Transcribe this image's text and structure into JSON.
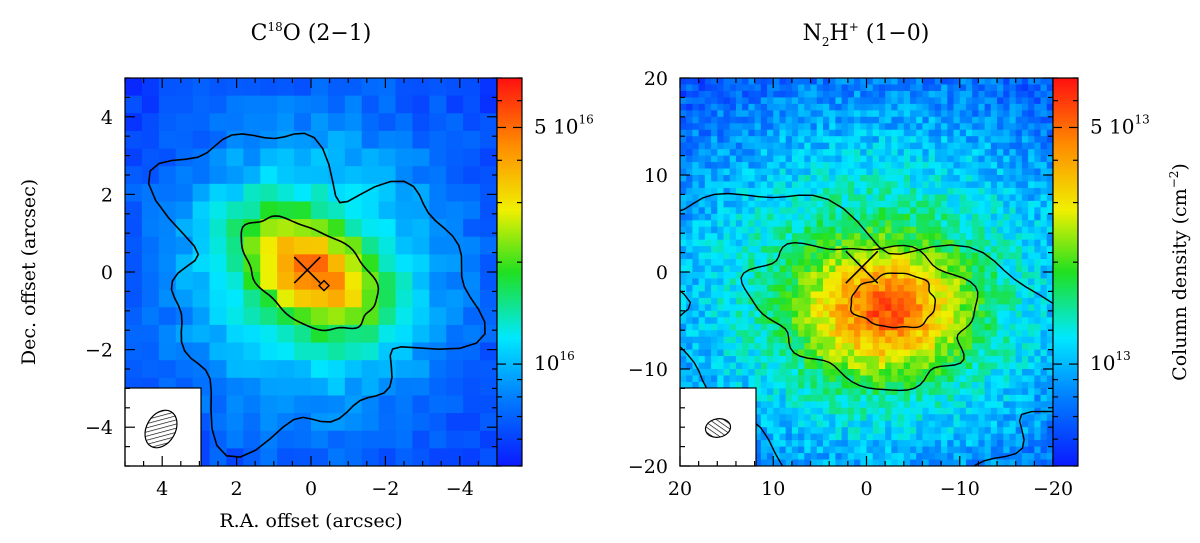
{
  "chart_data": [
    {
      "type": "heatmap",
      "title": "C18O (2-1)",
      "title_parts": {
        "main": "C",
        "sup": "18",
        "rest": "O (2−1)"
      },
      "xlabel": "R.A. offset (arcsec)",
      "ylabel": "Dec. offset (arcsec)",
      "xlim": [
        5,
        -5
      ],
      "ylim": [
        -5,
        5
      ],
      "x_ticks": [
        4,
        2,
        0,
        -2,
        -4
      ],
      "x_tick_labels": [
        "4",
        "2",
        "0",
        "−2",
        "−4"
      ],
      "y_ticks": [
        4,
        2,
        0,
        -2,
        -4
      ],
      "y_tick_labels": [
        "4",
        "2",
        "0",
        "−2",
        "−4"
      ],
      "grid": false,
      "colorscale": "jet",
      "colorbar": {
        "scale": "log",
        "range": [
          5000000000000000.0,
          7e+16
        ],
        "labels": [
          {
            "value": 5e+16,
            "mantissa": "5 10",
            "exp": "16"
          },
          {
            "value": 1e+16,
            "mantissa": "10",
            "exp": "16"
          }
        ]
      },
      "peak": {
        "x": 0.0,
        "y": 0.0,
        "value": 6e+16
      },
      "contour_levels": [
        2e+16,
        4e+16
      ],
      "markers": [
        {
          "symbol": "cross",
          "x": 0.1,
          "y": 0.05
        },
        {
          "symbol": "diamond",
          "x": -0.35,
          "y": -0.35
        }
      ],
      "beam": {
        "major": 1.25,
        "minor": 0.9,
        "pa_deg": 30,
        "position": "bottom-left"
      }
    },
    {
      "type": "heatmap",
      "title": "N2H+ (1-0)",
      "title_parts": {
        "main": "N",
        "sub": "2",
        "rest1": "H",
        "sup": "+",
        "rest": " (1−0)"
      },
      "xlabel": "",
      "ylabel": "",
      "xlim": [
        20,
        -20
      ],
      "ylim": [
        -20,
        20
      ],
      "x_ticks": [
        20,
        10,
        0,
        -10,
        -20
      ],
      "x_tick_labels": [
        "20",
        "10",
        "0",
        "−10",
        "−20"
      ],
      "y_ticks": [
        20,
        10,
        0,
        -10,
        -20
      ],
      "y_tick_labels": [
        "20",
        "10",
        "0",
        "−10",
        "−20"
      ],
      "grid": false,
      "colorscale": "jet",
      "colorbar": {
        "scale": "log",
        "range": [
          5000000000000.0,
          70000000000000.0
        ],
        "title": "Column density (cm−2)",
        "title_parts": {
          "main": "Column density (cm",
          "sup": "−2",
          "rest": ")"
        },
        "labels": [
          {
            "value": 50000000000000.0,
            "mantissa": "5 10",
            "exp": "13"
          },
          {
            "value": 10000000000000.0,
            "mantissa": "10",
            "exp": "13"
          }
        ]
      },
      "peak": {
        "x": 1.0,
        "y": -4.0,
        "value": 50000000000000.0
      },
      "contour_levels": [
        15000000000000.0,
        27000000000000.0,
        45000000000000.0
      ],
      "markers": [
        {
          "symbol": "cross",
          "x": 0.5,
          "y": 0.5
        }
      ],
      "beam": {
        "major": 3.0,
        "minor": 2.2,
        "pa_deg": 80,
        "position": "bottom-left"
      }
    }
  ]
}
